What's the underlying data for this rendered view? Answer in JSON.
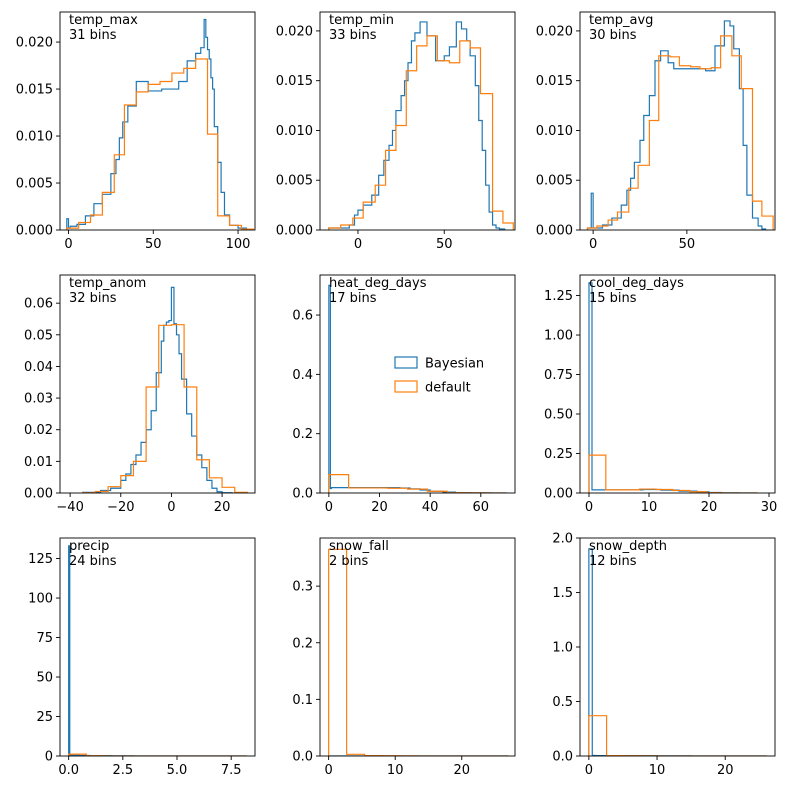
{
  "colors": {
    "bayesian": "#1f77b4",
    "default": "#ff7f0e"
  },
  "legend": {
    "entries": [
      "Bayesian",
      "default"
    ],
    "location": "center-right of heat_deg_days panel"
  },
  "chart_data": [
    {
      "type": "histogram",
      "name": "temp_max",
      "annotation": [
        "temp_max",
        "31 bins"
      ],
      "xlim": [
        -5,
        110
      ],
      "ylim": [
        0,
        0.0232
      ],
      "xticks": [
        0,
        50,
        100
      ],
      "xtick_labels": [
        "0",
        "50",
        "100"
      ],
      "yticks": [
        0,
        0.005,
        0.01,
        0.015,
        0.02
      ],
      "ytick_labels": [
        "0.000",
        "0.005",
        "0.010",
        "0.015",
        "0.020"
      ],
      "series": [
        {
          "name": "Bayesian",
          "color": "#1f77b4",
          "edges": [
            -1,
            0,
            1,
            5,
            10,
            15,
            20,
            25,
            28,
            30,
            32,
            35,
            40,
            47,
            55,
            60,
            65,
            70,
            75,
            78,
            80,
            81,
            82,
            83,
            84,
            85,
            86,
            88,
            90,
            92,
            95,
            100,
            105
          ],
          "values": [
            0.0012,
            0.0002,
            0.0004,
            0.0006,
            0.0015,
            0.0028,
            0.0038,
            0.006,
            0.0075,
            0.0098,
            0.0115,
            0.0132,
            0.0158,
            0.0148,
            0.015,
            0.015,
            0.0158,
            0.018,
            0.0188,
            0.0194,
            0.0224,
            0.0205,
            0.0192,
            0.0182,
            0.0162,
            0.015,
            0.011,
            0.0072,
            0.004,
            0.0016,
            0.0005,
            0.0002
          ]
        },
        {
          "name": "default",
          "color": "#ff7f0e",
          "edges": [
            -1,
            6,
            13,
            20,
            27,
            33,
            40,
            47,
            54,
            61,
            68,
            75,
            82,
            88,
            95,
            102,
            109
          ],
          "values": [
            0.0002,
            0.0008,
            0.0016,
            0.004,
            0.008,
            0.0133,
            0.0147,
            0.0155,
            0.0158,
            0.0167,
            0.0172,
            0.0182,
            0.0102,
            0.0015,
            0.0005,
            0.0001
          ]
        }
      ]
    },
    {
      "type": "histogram",
      "name": "temp_min",
      "annotation": [
        "temp_min",
        "33 bins"
      ],
      "xlim": [
        -22,
        91
      ],
      "ylim": [
        0,
        0.0219
      ],
      "xticks": [
        0,
        50
      ],
      "xtick_labels": [
        "0",
        "50"
      ],
      "yticks": [
        0,
        0.005,
        0.01,
        0.015,
        0.02
      ],
      "ytick_labels": [
        "0.000",
        "0.005",
        "0.010",
        "0.015",
        "0.020"
      ],
      "series": [
        {
          "name": "Bayesian",
          "color": "#1f77b4",
          "edges": [
            -17,
            -5,
            -2,
            0,
            3,
            8,
            12,
            15,
            18,
            20,
            22,
            25,
            27,
            29,
            31,
            33,
            36,
            40,
            45,
            50,
            53,
            57,
            60,
            63,
            65,
            68,
            70,
            72,
            74,
            76,
            78,
            80,
            82,
            85
          ],
          "values": [
            0.0002,
            0.0005,
            0.0015,
            0.002,
            0.0025,
            0.0035,
            0.0055,
            0.007,
            0.0085,
            0.01,
            0.012,
            0.0135,
            0.015,
            0.0168,
            0.019,
            0.0198,
            0.0209,
            0.0195,
            0.017,
            0.0175,
            0.0184,
            0.0209,
            0.0202,
            0.019,
            0.0175,
            0.0145,
            0.011,
            0.008,
            0.0045,
            0.0018,
            0.0005,
            0.0002,
            0.0001
          ]
        },
        {
          "name": "default",
          "color": "#ff7f0e",
          "edges": [
            -17,
            -10,
            -3,
            3,
            10,
            16,
            22,
            28,
            34,
            40,
            46,
            53,
            59,
            65,
            71,
            78,
            84,
            90
          ],
          "values": [
            0.0002,
            0.0005,
            0.0012,
            0.0028,
            0.0045,
            0.008,
            0.0105,
            0.016,
            0.0185,
            0.0195,
            0.017,
            0.0168,
            0.019,
            0.0183,
            0.0137,
            0.0019,
            0.0007
          ]
        }
      ]
    },
    {
      "type": "histogram",
      "name": "temp_avg",
      "annotation": [
        "temp_avg",
        "30 bins"
      ],
      "xlim": [
        -7,
        97
      ],
      "ylim": [
        0,
        0.0219
      ],
      "xticks": [
        0,
        50
      ],
      "xtick_labels": [
        "0",
        "50"
      ],
      "yticks": [
        0,
        0.005,
        0.01,
        0.015,
        0.02
      ],
      "ytick_labels": [
        "0.000",
        "0.005",
        "0.010",
        "0.015",
        "0.020"
      ],
      "series": [
        {
          "name": "Bayesian",
          "color": "#1f77b4",
          "edges": [
            -3,
            -1,
            0,
            5,
            10,
            15,
            18,
            20,
            22,
            25,
            27,
            30,
            33,
            36,
            40,
            43,
            46,
            50,
            55,
            60,
            65,
            70,
            73,
            75,
            78,
            80,
            82,
            85,
            88,
            90,
            92
          ],
          "values": [
            0.0002,
            0.0037,
            0.0002,
            0.0005,
            0.0012,
            0.0025,
            0.004,
            0.0052,
            0.0068,
            0.009,
            0.0115,
            0.0135,
            0.017,
            0.018,
            0.0168,
            0.0162,
            0.0162,
            0.0162,
            0.0162,
            0.016,
            0.0185,
            0.021,
            0.0205,
            0.0182,
            0.0142,
            0.0085,
            0.0035,
            0.0012,
            0.0004,
            0.0001
          ]
        },
        {
          "name": "default",
          "color": "#ff7f0e",
          "edges": [
            -3,
            2,
            8,
            13,
            19,
            24,
            30,
            35,
            41,
            46,
            52,
            57,
            63,
            68,
            74,
            79,
            85,
            90,
            96
          ],
          "values": [
            0.0002,
            0.0004,
            0.001,
            0.0018,
            0.0042,
            0.0065,
            0.011,
            0.0175,
            0.0174,
            0.0165,
            0.0164,
            0.0162,
            0.0163,
            0.0195,
            0.0175,
            0.0142,
            0.0029,
            0.0014
          ]
        }
      ]
    },
    {
      "type": "histogram",
      "name": "temp_anom",
      "annotation": [
        "temp_anom",
        "32 bins"
      ],
      "xlim": [
        -44,
        33
      ],
      "ylim": [
        0,
        0.0689
      ],
      "xticks": [
        -40,
        -20,
        0,
        20
      ],
      "xtick_labels": [
        "−40",
        "−20",
        "0",
        "20"
      ],
      "yticks": [
        0,
        0.01,
        0.02,
        0.03,
        0.04,
        0.05,
        0.06
      ],
      "ytick_labels": [
        "0.00",
        "0.01",
        "0.02",
        "0.03",
        "0.04",
        "0.05",
        "0.06"
      ],
      "series": [
        {
          "name": "Bayesian",
          "color": "#1f77b4",
          "edges": [
            -35,
            -28,
            -24,
            -20,
            -18,
            -16,
            -14,
            -12,
            -10,
            -8,
            -6,
            -4,
            -3,
            -2,
            -1,
            0,
            1,
            2,
            3,
            4,
            6,
            8,
            10,
            12,
            14,
            16,
            18,
            20,
            24
          ],
          "values": [
            0.0002,
            0.0008,
            0.0015,
            0.004,
            0.006,
            0.009,
            0.012,
            0.016,
            0.02,
            0.026,
            0.038,
            0.048,
            0.053,
            0.054,
            0.0545,
            0.065,
            0.0535,
            0.05,
            0.044,
            0.036,
            0.025,
            0.018,
            0.012,
            0.008,
            0.004,
            0.0015,
            0.0004,
            0.0001
          ]
        },
        {
          "name": "default",
          "color": "#ff7f0e",
          "edges": [
            -35,
            -30,
            -25,
            -20,
            -15,
            -10,
            -5,
            0,
            5,
            10,
            15,
            20,
            25,
            30
          ],
          "values": [
            0.0001,
            0.0005,
            0.002,
            0.0055,
            0.01,
            0.0335,
            0.053,
            0.0532,
            0.0335,
            0.0105,
            0.0048,
            0.0018,
            0.0002
          ]
        }
      ]
    },
    {
      "type": "histogram",
      "name": "heat_deg_days",
      "annotation": [
        "heat_deg_days",
        "17 bins"
      ],
      "xlim": [
        -3.5,
        73.5
      ],
      "ylim": [
        0,
        0.735
      ],
      "xticks": [
        0,
        20,
        40,
        60
      ],
      "xtick_labels": [
        "0",
        "20",
        "40",
        "60"
      ],
      "yticks": [
        0,
        0.2,
        0.4,
        0.6
      ],
      "ytick_labels": [
        "0.0",
        "0.2",
        "0.4",
        "0.6"
      ],
      "series": [
        {
          "name": "Bayesian",
          "color": "#1f77b4",
          "edges": [
            0,
            0.6,
            1,
            7,
            15,
            25,
            28,
            32,
            36,
            40,
            45,
            50,
            56,
            64,
            70
          ],
          "values": [
            0.7,
            0.015,
            0.018,
            0.018,
            0.018,
            0.018,
            0.017,
            0.014,
            0.01,
            0.006,
            0.003,
            0.001,
            0.0004,
            0.0001
          ]
        },
        {
          "name": "default",
          "color": "#ff7f0e",
          "edges": [
            0,
            7.8,
            15.6,
            23.3,
            31.1,
            38.9,
            46.7,
            54.4,
            62.2,
            70
          ],
          "values": [
            0.062,
            0.017,
            0.017,
            0.016,
            0.013,
            0.006,
            0.001,
            0.0003,
            0.0001
          ]
        }
      ]
    },
    {
      "type": "histogram",
      "name": "cool_deg_days",
      "annotation": [
        "cool_deg_days",
        "15 bins"
      ],
      "xlim": [
        -1.5,
        31
      ],
      "ylim": [
        0,
        1.38
      ],
      "xticks": [
        0,
        10,
        20,
        30
      ],
      "xtick_labels": [
        "0",
        "10",
        "20",
        "30"
      ],
      "yticks": [
        0,
        0.25,
        0.5,
        0.75,
        1.0,
        1.25
      ],
      "ytick_labels": [
        "0.00",
        "0.25",
        "0.50",
        "0.75",
        "1.00",
        "1.25"
      ],
      "series": [
        {
          "name": "Bayesian",
          "color": "#1f77b4",
          "edges": [
            0,
            0.5,
            1,
            3,
            6,
            9,
            12,
            15,
            18,
            20,
            22,
            25,
            28
          ],
          "values": [
            1.33,
            0.02,
            0.02,
            0.02,
            0.02,
            0.022,
            0.018,
            0.012,
            0.007,
            0.003,
            0.001,
            0.0003
          ]
        },
        {
          "name": "default",
          "color": "#ff7f0e",
          "edges": [
            0,
            2.8,
            5.6,
            8.4,
            11.2,
            14,
            16.8,
            19.6,
            22.4,
            25.2,
            28
          ],
          "values": [
            0.24,
            0.02,
            0.02,
            0.025,
            0.022,
            0.016,
            0.008,
            0.002,
            0.0005,
            0.0001
          ]
        }
      ]
    },
    {
      "type": "histogram",
      "name": "precip",
      "annotation": [
        "precip",
        "24 bins"
      ],
      "xlim": [
        -0.4,
        8.6
      ],
      "ylim": [
        0,
        138
      ],
      "xticks": [
        0,
        2.5,
        5,
        7.5
      ],
      "xtick_labels": [
        "0.0",
        "2.5",
        "5.0",
        "7.5"
      ],
      "yticks": [
        0,
        25,
        50,
        75,
        100,
        125
      ],
      "ytick_labels": [
        "0",
        "25",
        "50",
        "75",
        "100",
        "125"
      ],
      "series": [
        {
          "name": "Bayesian",
          "color": "#1f77b4",
          "edges": [
            0,
            0.05,
            0.5,
            1,
            2,
            3,
            4,
            5,
            6,
            7,
            8.2
          ],
          "values": [
            133,
            0.5,
            0.3,
            0.2,
            0.1,
            0.05,
            0.03,
            0.02,
            0.01,
            0.01
          ]
        },
        {
          "name": "default",
          "color": "#ff7f0e",
          "edges": [
            0,
            0.82,
            1.64,
            2.46,
            3.28,
            4.1,
            4.92,
            5.74,
            6.56,
            7.38,
            8.2
          ],
          "values": [
            1.2,
            0.15,
            0.05,
            0.02,
            0.01,
            0.01,
            0.005,
            0.005,
            0.002,
            0.002
          ]
        }
      ]
    },
    {
      "type": "histogram",
      "name": "snow_fall",
      "annotation": [
        "snow_fall",
        "2 bins"
      ],
      "xlim": [
        -1.3,
        28
      ],
      "ylim": [
        0,
        0.385
      ],
      "xticks": [
        0,
        10,
        20
      ],
      "xtick_labels": [
        "0",
        "10",
        "20"
      ],
      "yticks": [
        0,
        0.1,
        0.2,
        0.3
      ],
      "ytick_labels": [
        "0.0",
        "0.1",
        "0.2",
        "0.3"
      ],
      "series": [
        {
          "name": "Bayesian",
          "color": "#1f77b4",
          "edges": [
            0,
            5,
            27
          ],
          "values": [
            0,
            0
          ]
        },
        {
          "name": "default",
          "color": "#ff7f0e",
          "edges": [
            0,
            2.7,
            5.4,
            8.1,
            10.8,
            13.5,
            16.2,
            18.9,
            21.6,
            24.3,
            27
          ],
          "values": [
            0.365,
            0.003,
            0.0008,
            0.0004,
            0.0002,
            0.0001,
            0.0001,
            0.0001,
            0.0001,
            0.0001
          ]
        }
      ]
    },
    {
      "type": "histogram",
      "name": "snow_depth",
      "annotation": [
        "snow_depth",
        "12 bins"
      ],
      "xlim": [
        -1.3,
        27.3
      ],
      "ylim": [
        0,
        2.0
      ],
      "xticks": [
        0,
        10,
        20
      ],
      "xtick_labels": [
        "0",
        "10",
        "20"
      ],
      "yticks": [
        0,
        0.5,
        1.0,
        1.5,
        2.0
      ],
      "ytick_labels": [
        "0.0",
        "0.5",
        "1.0",
        "1.5",
        "2.0"
      ],
      "series": [
        {
          "name": "Bayesian",
          "color": "#1f77b4",
          "edges": [
            0,
            0.5,
            1,
            3,
            6,
            10,
            15,
            20,
            26
          ],
          "values": [
            1.9,
            0.005,
            0.004,
            0.003,
            0.002,
            0.001,
            0.0005,
            0.0002
          ]
        },
        {
          "name": "default",
          "color": "#ff7f0e",
          "edges": [
            0,
            2.6,
            5.2,
            7.8,
            10.4,
            13,
            15.6,
            18.2,
            20.8,
            23.4,
            26
          ],
          "values": [
            0.37,
            0.004,
            0.002,
            0.001,
            0.0006,
            0.0004,
            0.0002,
            0.0001,
            0.0001,
            0.0001
          ]
        }
      ]
    }
  ]
}
